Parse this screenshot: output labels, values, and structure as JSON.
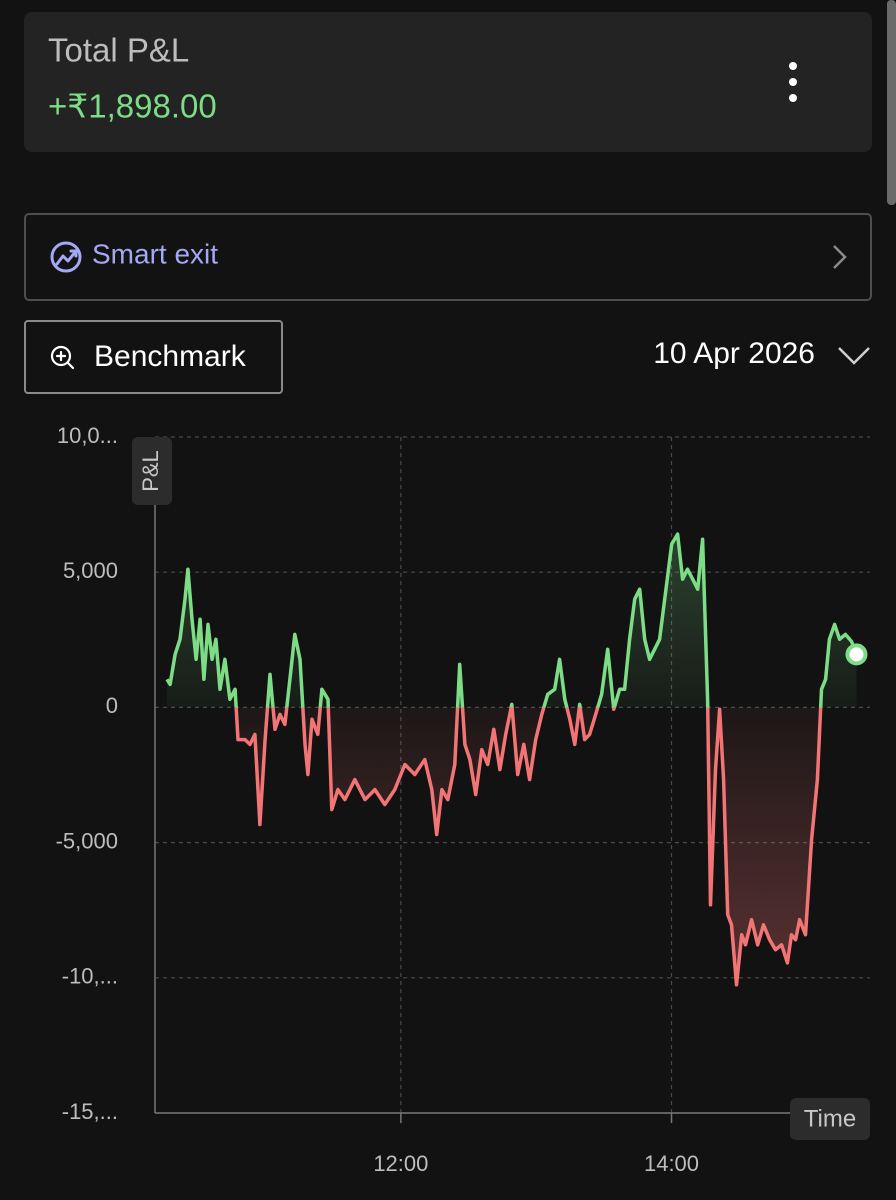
{
  "header": {
    "title": "Total P&L",
    "value": "+₹1,898.00"
  },
  "smart_exit": {
    "label": "Smart exit"
  },
  "benchmark": {
    "label": "Benchmark"
  },
  "date_selector": {
    "label": "10 Apr 2026"
  },
  "chart_data": {
    "type": "line",
    "ylabel": "P&L",
    "xlabel": "Time",
    "color": "#7ddc86",
    "negative_color": "#f27474",
    "grid": true,
    "xlim": [
      611,
      928
    ],
    "xticks": [
      {
        "value": 720,
        "label": "12:00"
      },
      {
        "value": 840,
        "label": "14:00"
      }
    ],
    "ylim": [
      -15000,
      10000
    ],
    "yticks": [
      {
        "value": -15000,
        "label": "-15,..."
      },
      {
        "value": -10000,
        "label": "-10,..."
      },
      {
        "value": -5000,
        "label": "-5,000"
      },
      0,
      {
        "value": 5000,
        "label": "5,000"
      },
      {
        "value": 10000,
        "label": "10,0..."
      }
    ],
    "x": [
      616.3,
      617.7,
      619.9,
      622.1,
      624.3,
      625.6,
      627.4,
      629.2,
      631.0,
      632.7,
      634.5,
      636.3,
      638.0,
      639.8,
      642.0,
      644.2,
      646.5,
      647.8,
      650.9,
      653.1,
      655.3,
      657.5,
      659.8,
      662.0,
      664.2,
      666.4,
      668.6,
      670.8,
      673.0,
      675.3,
      677.5,
      678.8,
      680.6,
      683.2,
      685.0,
      687.7,
      689.4,
      692.1,
      695.2,
      699.6,
      704.1,
      708.5,
      712.9,
      717.3,
      721.8,
      726.2,
      730.6,
      733.7,
      735.9,
      738.2,
      740.8,
      743.9,
      746.1,
      748.4,
      750.6,
      753.2,
      755.9,
      758.5,
      761.2,
      763.9,
      766.5,
      769.2,
      771.8,
      774.5,
      777.1,
      779.8,
      782.5,
      785.1,
      788.2,
      790.4,
      792.7,
      794.9,
      797.1,
      799.3,
      801.5,
      803.7,
      806.4,
      809.0,
      811.7,
      814.4,
      817.0,
      819.2,
      821.4,
      823.7,
      825.9,
      828.1,
      830.3,
      832.5,
      834.7,
      837.0,
      840.1,
      842.7,
      844.9,
      847.1,
      849.4,
      851.6,
      853.8,
      856.0,
      857.3,
      859.5,
      861.3,
      863.1,
      864.9,
      866.6,
      868.8,
      871.1,
      872.8,
      875.5,
      878.2,
      880.8,
      883.5,
      886.1,
      888.8,
      891.4,
      893.2,
      895.0,
      896.8,
      899.4,
      902.1,
      904.7,
      906.5,
      908.3,
      910.0,
      912.3,
      914.5,
      917.1,
      919.8,
      922.0
    ],
    "values": [
      1040,
      850,
      1960,
      2520,
      4000,
      5110,
      3260,
      1780,
      3260,
      1040,
      3070,
      1780,
      2520,
      670,
      1780,
      300,
      670,
      -1190,
      -1190,
      -1370,
      -1000,
      -4330,
      -1190,
      1220,
      -810,
      -260,
      -630,
      1040,
      2700,
      1780,
      -1370,
      -2480,
      -440,
      -1000,
      670,
      300,
      -3780,
      -3040,
      -3410,
      -2670,
      -3410,
      -3040,
      -3590,
      -3040,
      -2110,
      -2480,
      -1930,
      -3040,
      -4700,
      -3040,
      -3410,
      -2110,
      1590,
      -1370,
      -1930,
      -3220,
      -1560,
      -2110,
      -810,
      -2300,
      -1000,
      110,
      -2480,
      -1370,
      -2670,
      -1190,
      -260,
      480,
      670,
      1780,
      300,
      -440,
      -1370,
      110,
      -1190,
      -1000,
      -260,
      480,
      2150,
      -70,
      670,
      670,
      2520,
      4000,
      4370,
      2520,
      1780,
      2150,
      2520,
      4000,
      6040,
      6410,
      4740,
      5110,
      4740,
      4370,
      6220,
      300,
      -7300,
      -2300,
      -70,
      -2670,
      -7670,
      -8040,
      -10260,
      -8410,
      -8780,
      -7850,
      -8780,
      -8040,
      -8590,
      -8960,
      -8780,
      -9450,
      -8410,
      -8590,
      -7850,
      -8410,
      -4890,
      -2670,
      670,
      1040,
      2520,
      3070,
      2520,
      2700,
      2440,
      1960
    ]
  }
}
